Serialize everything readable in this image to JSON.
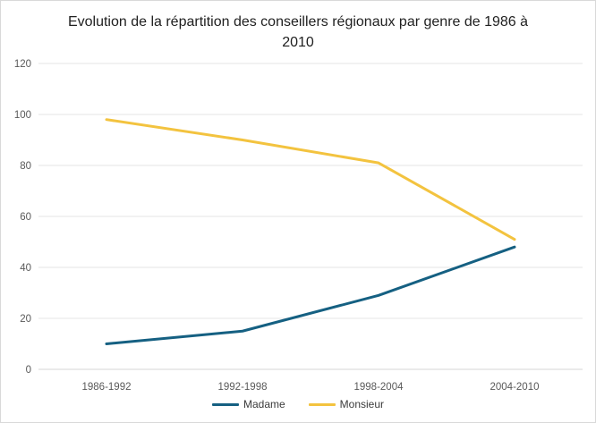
{
  "chart_data": {
    "type": "line",
    "title": "Evolution de la répartition des conseillers régionaux par genre de 1986 à 2010",
    "categories": [
      "1986-1992",
      "1992-1998",
      "1998-2004",
      "2004-2010"
    ],
    "series": [
      {
        "name": "Madame",
        "values": [
          10,
          15,
          29,
          48
        ],
        "color": "#156082"
      },
      {
        "name": "Monsieur",
        "values": [
          98,
          90,
          81,
          51
        ],
        "color": "#F3C33F"
      }
    ],
    "xlabel": "",
    "ylabel": "",
    "ylim": [
      0,
      120
    ],
    "yticks": [
      0,
      20,
      40,
      60,
      80,
      100,
      120
    ],
    "grid": true,
    "legend_position": "bottom",
    "theme": {
      "background": "#FFFFFF",
      "border": "#D9D9D9",
      "gridline": "#E6E6E6",
      "axis_line": "#D6D6D6",
      "tick_label_color": "#595959",
      "title_color": "#1F1F1F",
      "legend_text_color": "#3B3B3B",
      "line_width": 3
    }
  }
}
